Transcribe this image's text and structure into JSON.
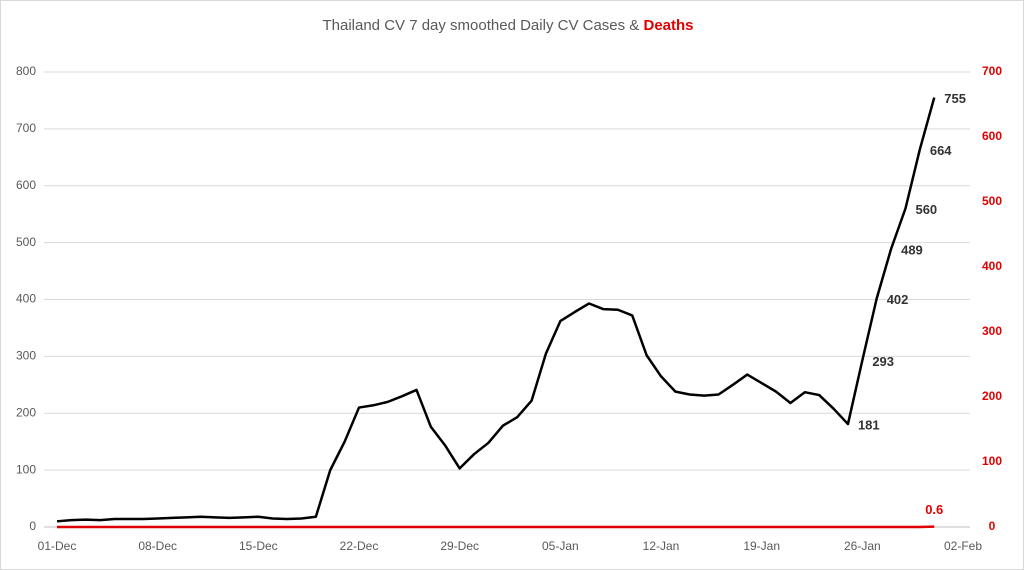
{
  "chart_data": {
    "type": "line",
    "title": "Thailand CV 7 day smoothed Daily CV Cases &",
    "categories": [
      "01-Dec",
      null,
      null,
      null,
      null,
      null,
      null,
      "08-Dec",
      null,
      null,
      null,
      null,
      null,
      null,
      "15-Dec",
      null,
      null,
      null,
      null,
      null,
      null,
      "22-Dec",
      null,
      null,
      null,
      null,
      null,
      null,
      "29-Dec",
      null,
      null,
      null,
      null,
      null,
      null,
      "05-Jan",
      null,
      null,
      null,
      null,
      null,
      null,
      "12-Jan",
      null,
      null,
      null,
      null,
      null,
      null,
      "19-Jan",
      null,
      null,
      null,
      null,
      null,
      null,
      "26-Jan",
      null,
      null,
      null,
      null,
      null,
      null,
      "02-Feb"
    ],
    "series": [
      {
        "color": "#000000",
        "axis": "y",
        "values": [
          10,
          12,
          13,
          12,
          14,
          14,
          14,
          15,
          16,
          17,
          18,
          17,
          16,
          17,
          18,
          15,
          14,
          15,
          18,
          100,
          150,
          210,
          214,
          220,
          230,
          241,
          176,
          143,
          103,
          128,
          148,
          178,
          193,
          222,
          305,
          362,
          378,
          393,
          383,
          382,
          372,
          302,
          265,
          238,
          233,
          231,
          233,
          250,
          268,
          253,
          238,
          218,
          237,
          232,
          208,
          181,
          293,
          402,
          489,
          560,
          664,
          755,
          null,
          null
        ],
        "value_labels": [
          null,
          null,
          null,
          null,
          null,
          null,
          null,
          null,
          null,
          null,
          null,
          null,
          null,
          null,
          null,
          null,
          null,
          null,
          null,
          null,
          null,
          null,
          null,
          null,
          null,
          null,
          null,
          null,
          null,
          null,
          null,
          null,
          null,
          null,
          null,
          null,
          null,
          null,
          null,
          null,
          null,
          null,
          null,
          null,
          null,
          null,
          null,
          null,
          null,
          null,
          null,
          null,
          null,
          null,
          null,
          "181",
          "293",
          "402",
          "489",
          "560",
          "664",
          "755",
          null,
          null
        ]
      },
      {
        "name": "Deaths",
        "color": "#e00000",
        "axis": "y2",
        "values": [
          0,
          0,
          0,
          0,
          0,
          0,
          0,
          0,
          0,
          0,
          0,
          0,
          0,
          0,
          0,
          0,
          0,
          0,
          0,
          0,
          0,
          0,
          0,
          0,
          0,
          0,
          0,
          0,
          0,
          0,
          0,
          0,
          0,
          0,
          0,
          0,
          0,
          0,
          0,
          0,
          0,
          0,
          0,
          0,
          0,
          0,
          0,
          0,
          0,
          0,
          0,
          0,
          0,
          0,
          0,
          0,
          0,
          0,
          0,
          0,
          0,
          0.6,
          null,
          null
        ],
        "value_labels": [
          null,
          null,
          null,
          null,
          null,
          null,
          null,
          null,
          null,
          null,
          null,
          null,
          null,
          null,
          null,
          null,
          null,
          null,
          null,
          null,
          null,
          null,
          null,
          null,
          null,
          null,
          null,
          null,
          null,
          null,
          null,
          null,
          null,
          null,
          null,
          null,
          null,
          null,
          null,
          null,
          null,
          null,
          null,
          null,
          null,
          null,
          null,
          null,
          null,
          null,
          null,
          null,
          null,
          null,
          null,
          null,
          null,
          null,
          null,
          null,
          null,
          "0.6",
          null,
          null
        ]
      }
    ],
    "ylim": [
      0,
      800
    ],
    "yticks": [
      0,
      100,
      200,
      300,
      400,
      500,
      600,
      700,
      800
    ],
    "y2lim": [
      0,
      700
    ],
    "y2ticks": [
      0,
      100,
      200,
      300,
      400,
      500,
      600,
      700
    ],
    "grid": true
  }
}
